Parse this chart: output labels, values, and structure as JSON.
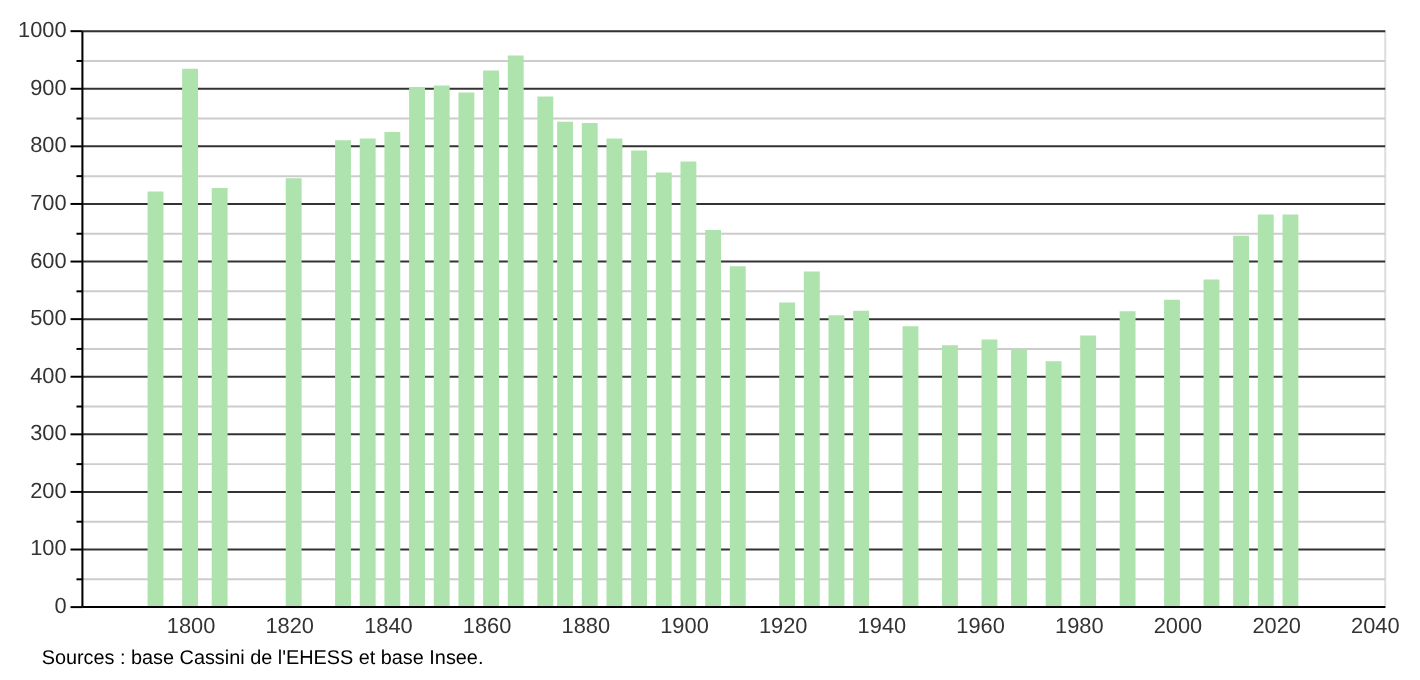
{
  "chart_data": {
    "type": "bar",
    "x": [
      1793,
      1800,
      1806,
      1821,
      1831,
      1836,
      1841,
      1846,
      1851,
      1856,
      1861,
      1866,
      1872,
      1876,
      1881,
      1886,
      1891,
      1896,
      1901,
      1906,
      1911,
      1921,
      1926,
      1931,
      1936,
      1946,
      1954,
      1962,
      1968,
      1975,
      1982,
      1990,
      1999,
      2007,
      2013,
      2018,
      2023
    ],
    "series": [
      {
        "color": "#aee3ae",
        "values": [
          720,
          933,
          726,
          743,
          809,
          812,
          823,
          901,
          904,
          892,
          930,
          956,
          885,
          841,
          839,
          812,
          791,
          753,
          772,
          653,
          590,
          527,
          581,
          505,
          513,
          486,
          453,
          463,
          447,
          425,
          470,
          512,
          532,
          567,
          643,
          680,
          680
        ]
      }
    ],
    "xlim": [
      1780,
      2040
    ],
    "xticks": [
      1800,
      1820,
      1840,
      1860,
      1880,
      1900,
      1920,
      1940,
      1960,
      1980,
      2000,
      2020,
      2040
    ],
    "ylim": [
      0,
      1000
    ],
    "yticks": [
      0,
      {
        "value": 50,
        "label": null
      },
      100,
      {
        "value": 150,
        "label": null
      },
      200,
      {
        "value": 250,
        "label": null
      },
      300,
      {
        "value": 350,
        "label": null
      },
      400,
      {
        "value": 450,
        "label": null
      },
      500,
      {
        "value": 550,
        "label": null
      },
      600,
      {
        "value": 650,
        "label": null
      },
      700,
      {
        "value": 750,
        "label": null
      },
      800,
      {
        "value": 850,
        "label": null
      },
      900,
      {
        "value": 950,
        "label": null
      },
      1000
    ],
    "grid": "y",
    "annotations": [
      "Sources : base Cassini de l'EHESS et base Insee."
    ]
  }
}
